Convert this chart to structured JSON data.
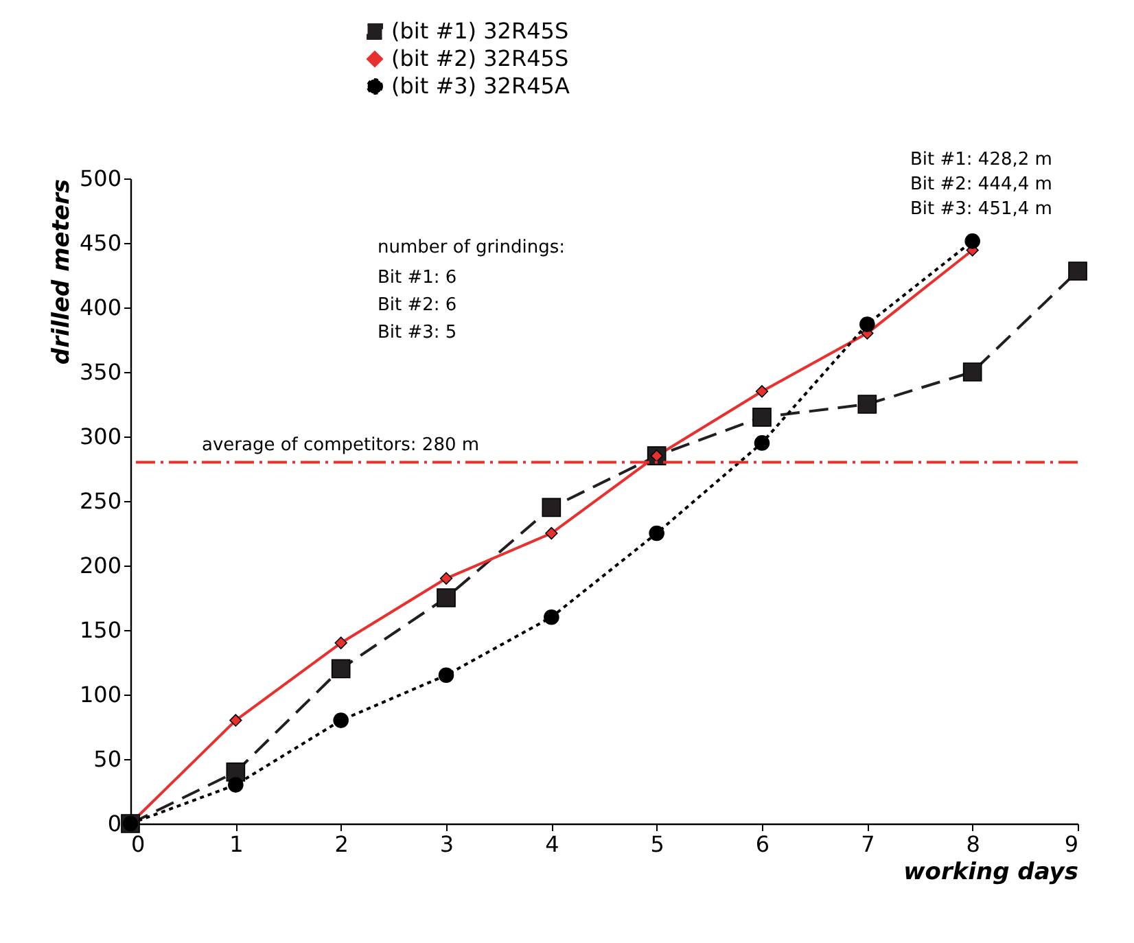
{
  "chart_data": {
    "type": "line",
    "xlabel": "working days",
    "ylabel": "drilled meters",
    "xlim": [
      0,
      9
    ],
    "xticks": [
      0,
      1,
      2,
      3,
      4,
      5,
      6,
      7,
      8,
      9
    ],
    "ylim": [
      0,
      500
    ],
    "yticks": [
      0,
      50,
      100,
      150,
      200,
      250,
      300,
      350,
      400,
      450,
      500
    ],
    "grid": false,
    "legend": "top",
    "series": [
      {
        "name": "(bit #1) 32R45S",
        "color": "#231f20",
        "marker": "square",
        "line_style": "dashed",
        "x": [
          0,
          1,
          2,
          3,
          4,
          5,
          6,
          7,
          8,
          9
        ],
        "values": [
          0,
          40,
          120,
          175,
          245,
          285,
          315,
          325,
          350,
          428.2
        ]
      },
      {
        "name": "(bit #2) 32R45S",
        "color": "#e8312f",
        "marker": "diamond",
        "line_style": "solid",
        "x": [
          0,
          1,
          2,
          3,
          4,
          5,
          6,
          7,
          8
        ],
        "values": [
          0,
          80,
          140,
          190,
          225,
          285,
          335,
          380,
          444.4
        ]
      },
      {
        "name": "(bit #3) 32R45A",
        "color": "#000000",
        "marker": "circle",
        "line_style": "dotted",
        "x": [
          0,
          1,
          2,
          3,
          4,
          5,
          6,
          7,
          8
        ],
        "values": [
          0,
          30,
          80,
          115,
          160,
          225,
          295,
          387,
          451.4
        ]
      }
    ],
    "ref_lines": [
      {
        "axis": "y",
        "value": 280,
        "label": "average of competitors: 280 m",
        "color": "#e8312f",
        "line_style": "dashdot"
      }
    ],
    "annotations": [
      "number of grindings:",
      "Bit #1: 6",
      "Bit #2: 6",
      "Bit #3: 5",
      "Bit #1: 428,2 m",
      "Bit #2: 444,4 m",
      "Bit #3: 451,4 m"
    ]
  }
}
